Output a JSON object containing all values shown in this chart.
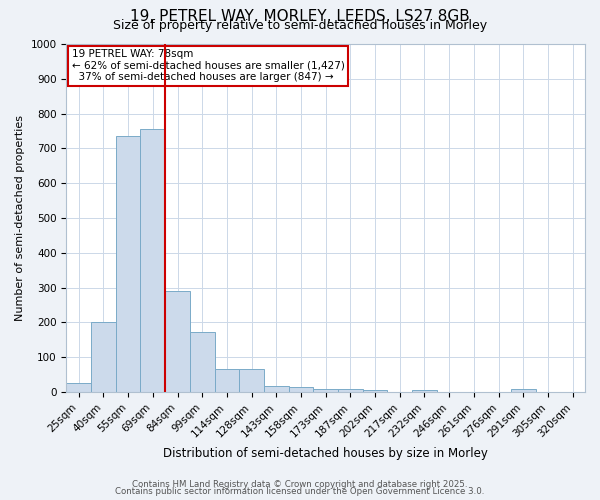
{
  "title_line1": "19, PETREL WAY, MORLEY, LEEDS, LS27 8GB",
  "title_line2": "Size of property relative to semi-detached houses in Morley",
  "xlabel": "Distribution of semi-detached houses by size in Morley",
  "ylabel": "Number of semi-detached properties",
  "categories": [
    "25sqm",
    "40sqm",
    "55sqm",
    "69sqm",
    "84sqm",
    "99sqm",
    "114sqm",
    "128sqm",
    "143sqm",
    "158sqm",
    "173sqm",
    "187sqm",
    "202sqm",
    "217sqm",
    "232sqm",
    "246sqm",
    "261sqm",
    "276sqm",
    "291sqm",
    "305sqm",
    "320sqm"
  ],
  "values": [
    25,
    202,
    735,
    755,
    290,
    172,
    65,
    65,
    18,
    15,
    10,
    10,
    5,
    0,
    5,
    0,
    0,
    0,
    8,
    0,
    0
  ],
  "bar_color": "#ccdaeb",
  "bar_edge_color": "#7aaac8",
  "vline_color": "#cc0000",
  "annotation_line1": "19 PETREL WAY: 78sqm",
  "annotation_line2": "← 62% of semi-detached houses are smaller (1,427)",
  "annotation_line3": "  37% of semi-detached houses are larger (847) →",
  "box_edge_color": "#cc0000",
  "ylim_max": 1000,
  "yticks": [
    0,
    100,
    200,
    300,
    400,
    500,
    600,
    700,
    800,
    900,
    1000
  ],
  "footer_line1": "Contains HM Land Registry data © Crown copyright and database right 2025.",
  "footer_line2": "Contains public sector information licensed under the Open Government Licence 3.0.",
  "bg_color": "#eef2f7",
  "plot_bg_color": "#ffffff",
  "grid_color": "#ccd8e8",
  "title_fontsize": 11,
  "subtitle_fontsize": 9,
  "ylabel_fontsize": 8,
  "xlabel_fontsize": 8.5,
  "tick_fontsize": 7.5,
  "footer_fontsize": 6.2
}
